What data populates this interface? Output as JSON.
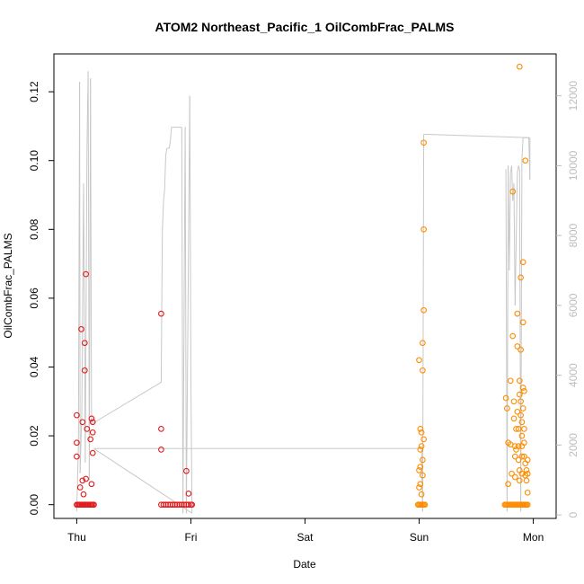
{
  "chart_data": {
    "type": "scatter",
    "title": "ATOM2 Northeast_Pacific_1 OilCombFrac_PALMS",
    "xlabel": "Date",
    "ylabel": "OilCombFrac_PALMS",
    "x_unit": "day index (0 = Thu)",
    "xlim": [
      -0.2,
      4.2
    ],
    "ylim": [
      -0.004,
      0.131
    ],
    "x_ticks": [
      {
        "value": 0,
        "label": "Thu"
      },
      {
        "value": 1,
        "label": "Fri"
      },
      {
        "value": 2,
        "label": "Sat"
      },
      {
        "value": 3,
        "label": "Sun"
      },
      {
        "value": 4,
        "label": "Mon"
      }
    ],
    "y_ticks": [
      {
        "value": 0.0,
        "label": "0.00"
      },
      {
        "value": 0.02,
        "label": "0.02"
      },
      {
        "value": 0.04,
        "label": "0.04"
      },
      {
        "value": 0.06,
        "label": "0.06"
      },
      {
        "value": 0.08,
        "label": "0.08"
      },
      {
        "value": 0.1,
        "label": "0.10"
      },
      {
        "value": 0.12,
        "label": "0.12"
      }
    ],
    "y2lim": [
      -100,
      13200
    ],
    "y2_ticks": [
      {
        "value": 0,
        "label": "0"
      },
      {
        "value": 2000,
        "label": "2000"
      },
      {
        "value": 4000,
        "label": "4000"
      },
      {
        "value": 6000,
        "label": "6000"
      },
      {
        "value": 8000,
        "label": "8000"
      },
      {
        "value": 10000,
        "label": "10000"
      },
      {
        "value": 12000,
        "label": "12000"
      }
    ],
    "colors": {
      "series1": "#e31a1c",
      "series2": "#ff8c00",
      "altitude": "#c8c8c8"
    },
    "series": [
      {
        "color": "#e31a1c",
        "points": [
          [
            0.0,
            0.026
          ],
          [
            0.0,
            0.018
          ],
          [
            0.0,
            0.014
          ],
          [
            0.03,
            0.005
          ],
          [
            0.04,
            0.051
          ],
          [
            0.05,
            0.024
          ],
          [
            0.05,
            0.007
          ],
          [
            0.06,
            0.003
          ],
          [
            0.07,
            0.039
          ],
          [
            0.07,
            0.047
          ],
          [
            0.08,
            0.067
          ],
          [
            0.08,
            0.0075
          ],
          [
            0.09,
            0.022
          ],
          [
            0.12,
            0.019
          ],
          [
            0.13,
            0.006
          ],
          [
            0.13,
            0.025
          ],
          [
            0.14,
            0.021
          ],
          [
            0.14,
            0.024
          ],
          [
            0.14,
            0.015
          ],
          [
            0.0,
            0
          ],
          [
            0.01,
            0
          ],
          [
            0.02,
            0
          ],
          [
            0.03,
            0
          ],
          [
            0.04,
            0
          ],
          [
            0.05,
            0
          ],
          [
            0.06,
            0
          ],
          [
            0.07,
            0
          ],
          [
            0.08,
            0
          ],
          [
            0.09,
            0
          ],
          [
            0.1,
            0
          ],
          [
            0.11,
            0
          ],
          [
            0.12,
            0
          ],
          [
            0.13,
            0
          ],
          [
            0.14,
            0
          ],
          [
            0.15,
            0
          ],
          [
            0.74,
            0.0555
          ],
          [
            0.74,
            0.022
          ],
          [
            0.74,
            0.016
          ],
          [
            0.96,
            0.0098
          ],
          [
            0.98,
            0.0032
          ],
          [
            0.74,
            0
          ],
          [
            0.76,
            0
          ],
          [
            0.78,
            0
          ],
          [
            0.8,
            0
          ],
          [
            0.82,
            0
          ],
          [
            0.84,
            0
          ],
          [
            0.86,
            0
          ],
          [
            0.88,
            0
          ],
          [
            0.9,
            0
          ],
          [
            0.92,
            0
          ],
          [
            0.94,
            0
          ],
          [
            0.96,
            0
          ],
          [
            0.98,
            0
          ],
          [
            1.0,
            0
          ],
          [
            1.01,
            0
          ]
        ]
      },
      {
        "color": "#ff8c00",
        "points": [
          [
            3.0,
            0.042
          ],
          [
            3.01,
            0.022
          ],
          [
            3.01,
            0.016
          ],
          [
            3.01,
            0.011
          ],
          [
            3.01,
            0.006
          ],
          [
            3.02,
            0.021
          ],
          [
            3.02,
            0.017
          ],
          [
            3.03,
            0.047
          ],
          [
            3.03,
            0.039
          ],
          [
            3.03,
            0.0085
          ],
          [
            3.03,
            0.013
          ],
          [
            3.04,
            0.1052
          ],
          [
            3.04,
            0.08
          ],
          [
            3.04,
            0.0565
          ],
          [
            3.04,
            0.019
          ],
          [
            3.0,
            0.005
          ],
          [
            3.0,
            0.01
          ],
          [
            3.02,
            0.003
          ],
          [
            2.99,
            0
          ],
          [
            3.0,
            0
          ],
          [
            3.01,
            0
          ],
          [
            3.02,
            0
          ],
          [
            3.03,
            0
          ],
          [
            3.04,
            0
          ],
          [
            3.05,
            0
          ],
          [
            3.76,
            0.031
          ],
          [
            3.77,
            0.028
          ],
          [
            3.78,
            0.018
          ],
          [
            3.8,
            0.036
          ],
          [
            3.8,
            0.0175
          ],
          [
            3.81,
            0.009
          ],
          [
            3.82,
            0.049
          ],
          [
            3.82,
            0.091
          ],
          [
            3.83,
            0.025
          ],
          [
            3.83,
            0.03
          ],
          [
            3.84,
            0.017
          ],
          [
            3.84,
            0.014
          ],
          [
            3.84,
            0.008
          ],
          [
            3.85,
            0.022
          ],
          [
            3.85,
            0.016
          ],
          [
            3.86,
            0.0555
          ],
          [
            3.86,
            0.046
          ],
          [
            3.86,
            0.027
          ],
          [
            3.87,
            0.022
          ],
          [
            3.87,
            0.013
          ],
          [
            3.87,
            0.017
          ],
          [
            3.88,
            0.036
          ],
          [
            3.88,
            0.032
          ],
          [
            3.88,
            0.01
          ],
          [
            3.88,
            0.007
          ],
          [
            3.89,
            0.066
          ],
          [
            3.89,
            0.045
          ],
          [
            3.89,
            0.03
          ],
          [
            3.89,
            0.026
          ],
          [
            3.9,
            0.024
          ],
          [
            3.9,
            0.02
          ],
          [
            3.9,
            0.014
          ],
          [
            3.9,
            0.009
          ],
          [
            3.91,
            0.0705
          ],
          [
            3.91,
            0.053
          ],
          [
            3.91,
            0.034
          ],
          [
            3.91,
            0.028
          ],
          [
            3.92,
            0.022
          ],
          [
            3.92,
            0.018
          ],
          [
            3.92,
            0.014
          ],
          [
            3.93,
            0.0085
          ],
          [
            3.93,
            0.012
          ],
          [
            3.94,
            0.01
          ],
          [
            3.94,
            0.007
          ],
          [
            3.95,
            0.013
          ],
          [
            3.95,
            0.0035
          ],
          [
            3.95,
            0.009
          ],
          [
            3.93,
            0.1
          ],
          [
            3.88,
            0.1273
          ],
          [
            3.78,
            0.006
          ],
          [
            3.92,
            0.033
          ],
          [
            3.9,
            0.017
          ],
          [
            3.75,
            0
          ],
          [
            3.76,
            0
          ],
          [
            3.77,
            0
          ],
          [
            3.78,
            0
          ],
          [
            3.79,
            0
          ],
          [
            3.8,
            0
          ],
          [
            3.81,
            0
          ],
          [
            3.82,
            0
          ],
          [
            3.83,
            0
          ],
          [
            3.84,
            0
          ],
          [
            3.85,
            0
          ],
          [
            3.86,
            0
          ],
          [
            3.87,
            0
          ],
          [
            3.88,
            0
          ],
          [
            3.89,
            0
          ],
          [
            3.9,
            0
          ],
          [
            3.91,
            0
          ],
          [
            3.92,
            0
          ],
          [
            3.93,
            0
          ],
          [
            3.94,
            0
          ],
          [
            3.95,
            0
          ]
        ]
      }
    ],
    "altitude_trace": [
      [
        0.0,
        100
      ],
      [
        0.015,
        2000
      ],
      [
        0.025,
        12400
      ],
      [
        0.03,
        1200
      ],
      [
        0.045,
        3000
      ],
      [
        0.06,
        9500
      ],
      [
        0.075,
        1500
      ],
      [
        0.09,
        10500
      ],
      [
        0.1,
        12700
      ],
      [
        0.11,
        1000
      ],
      [
        0.12,
        12500
      ],
      [
        0.13,
        2600
      ],
      [
        0.74,
        3800
      ],
      [
        0.75,
        8100
      ],
      [
        0.76,
        9000
      ],
      [
        0.77,
        9300
      ],
      [
        0.78,
        10300
      ],
      [
        0.79,
        10500
      ],
      [
        0.81,
        10500
      ],
      [
        0.82,
        10700
      ],
      [
        0.83,
        11100
      ],
      [
        0.92,
        11100
      ],
      [
        0.93,
        50
      ],
      [
        0.95,
        11100
      ],
      [
        0.96,
        50
      ],
      [
        0.99,
        12000
      ],
      [
        1.0,
        3800
      ],
      [
        1.01,
        50
      ],
      [
        0.15,
        1900
      ],
      [
        3.02,
        1900
      ],
      [
        3.03,
        100
      ],
      [
        3.04,
        10900
      ],
      [
        3.97,
        10800
      ],
      [
        3.97,
        9600
      ],
      [
        3.96,
        10800
      ],
      [
        3.91,
        10800
      ],
      [
        3.9,
        10200
      ],
      [
        3.89,
        100
      ],
      [
        3.88,
        9900
      ],
      [
        3.87,
        10000
      ],
      [
        3.86,
        9800
      ],
      [
        3.84,
        6000
      ],
      [
        3.83,
        9500
      ],
      [
        3.82,
        9000
      ],
      [
        3.81,
        10000
      ],
      [
        3.8,
        9800
      ],
      [
        3.79,
        7000
      ],
      [
        3.78,
        10000
      ],
      [
        3.77,
        100
      ],
      [
        3.76,
        9900
      ]
    ]
  }
}
